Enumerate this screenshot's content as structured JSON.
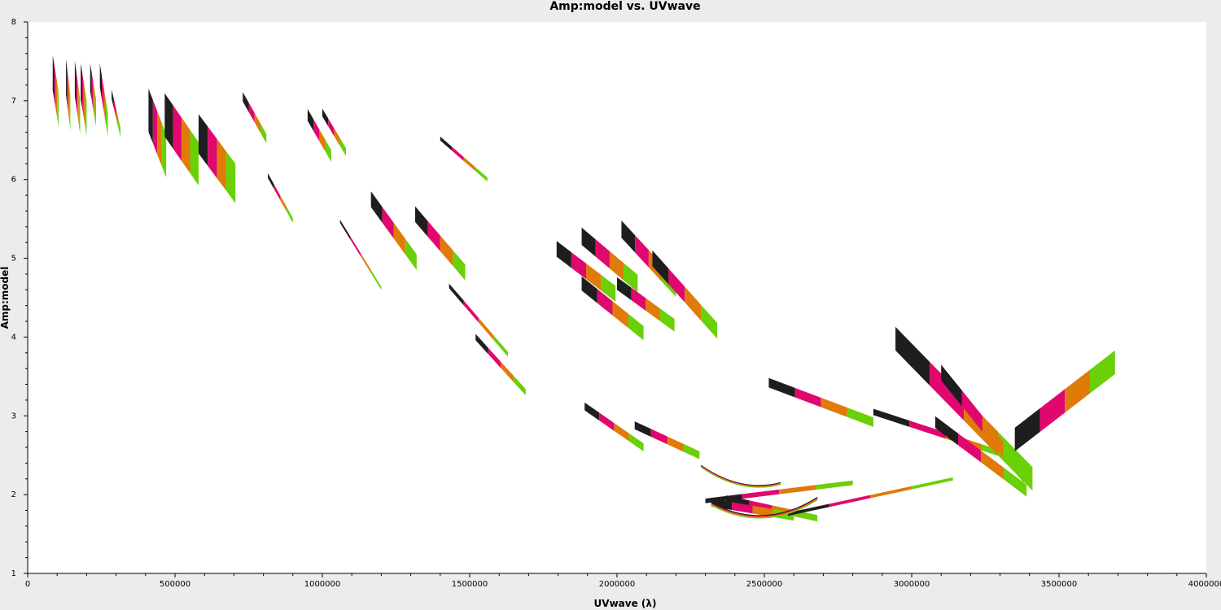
{
  "chart_data": {
    "type": "scatter",
    "title": "Amp:model vs. UVwave",
    "xlabel": "UVwave (λ)",
    "ylabel": "Amp:model",
    "xlim": [
      0,
      4000000
    ],
    "ylim": [
      1,
      8
    ],
    "x_ticks": [
      0,
      500000,
      1000000,
      1500000,
      2000000,
      2500000,
      3000000,
      3500000,
      4000000
    ],
    "y_ticks": [
      1,
      2,
      3,
      4,
      5,
      6,
      7,
      8
    ],
    "grid": false,
    "legend": "none",
    "series_colors": [
      "#1e1e1e",
      "#e0086e",
      "#e07a08",
      "#6ad008"
    ],
    "bands": [
      {
        "x": [
          85000,
          105000
        ],
        "y": [
          7.35,
          6.9
        ],
        "w": 0.45
      },
      {
        "x": [
          130000,
          145000
        ],
        "y": [
          7.3,
          6.85
        ],
        "w": 0.45
      },
      {
        "x": [
          160000,
          178000
        ],
        "y": [
          7.28,
          6.8
        ],
        "w": 0.45
      },
      {
        "x": [
          180000,
          200000
        ],
        "y": [
          7.25,
          6.78
        ],
        "w": 0.45
      },
      {
        "x": [
          212000,
          232000
        ],
        "y": [
          7.3,
          6.85
        ],
        "w": 0.35
      },
      {
        "x": [
          245000,
          272000
        ],
        "y": [
          7.32,
          6.7
        ],
        "w": 0.3
      },
      {
        "x": [
          285000,
          315000
        ],
        "y": [
          7.08,
          6.6
        ],
        "w": 0.12
      },
      {
        "x": [
          410000,
          470000
        ],
        "y": [
          6.88,
          6.3
        ],
        "w": 0.55
      },
      {
        "x": [
          465000,
          580000
        ],
        "y": [
          6.82,
          6.2
        ],
        "w": 0.55
      },
      {
        "x": [
          580000,
          705000
        ],
        "y": [
          6.58,
          5.95
        ],
        "w": 0.5
      },
      {
        "x": [
          730000,
          810000
        ],
        "y": [
          7.05,
          6.52
        ],
        "w": 0.12
      },
      {
        "x": [
          950000,
          1030000
        ],
        "y": [
          6.82,
          6.3
        ],
        "w": 0.15
      },
      {
        "x": [
          1000000,
          1080000
        ],
        "y": [
          6.85,
          6.35
        ],
        "w": 0.1
      },
      {
        "x": [
          815000,
          900000
        ],
        "y": [
          6.05,
          5.48
        ],
        "w": 0.06
      },
      {
        "x": [
          1400000,
          1560000
        ],
        "y": [
          6.52,
          6.0
        ],
        "w": 0.05
      },
      {
        "x": [
          1165000,
          1320000
        ],
        "y": [
          5.75,
          4.95
        ],
        "w": 0.2
      },
      {
        "x": [
          1315000,
          1485000
        ],
        "y": [
          5.56,
          4.82
        ],
        "w": 0.2
      },
      {
        "x": [
          1060000,
          1200000
        ],
        "y": [
          5.47,
          4.62
        ],
        "w": 0.04
      },
      {
        "x": [
          1795000,
          1995000
        ],
        "y": [
          5.12,
          4.55
        ],
        "w": 0.2
      },
      {
        "x": [
          1880000,
          2070000
        ],
        "y": [
          5.28,
          4.68
        ],
        "w": 0.22
      },
      {
        "x": [
          2015000,
          2200000
        ],
        "y": [
          5.37,
          4.62
        ],
        "w": 0.22
      },
      {
        "x": [
          2120000,
          2340000
        ],
        "y": [
          5.0,
          4.08
        ],
        "w": 0.2
      },
      {
        "x": [
          1880000,
          2090000
        ],
        "y": [
          4.68,
          4.05
        ],
        "w": 0.18
      },
      {
        "x": [
          2000000,
          2195000
        ],
        "y": [
          4.68,
          4.15
        ],
        "w": 0.16
      },
      {
        "x": [
          1430000,
          1630000
        ],
        "y": [
          4.65,
          3.78
        ],
        "w": 0.06
      },
      {
        "x": [
          1520000,
          1690000
        ],
        "y": [
          4.0,
          3.3
        ],
        "w": 0.08
      },
      {
        "x": [
          1890000,
          2090000
        ],
        "y": [
          3.12,
          2.6
        ],
        "w": 0.1
      },
      {
        "x": [
          2060000,
          2280000
        ],
        "y": [
          2.88,
          2.5
        ],
        "w": 0.1
      },
      {
        "x": [
          2515000,
          2870000
        ],
        "y": [
          3.42,
          2.92
        ],
        "w": 0.12
      },
      {
        "x": [
          2870000,
          3360000
        ],
        "y": [
          3.05,
          2.45
        ],
        "w": 0.08
      },
      {
        "x": [
          2945000,
          3410000
        ],
        "y": [
          3.98,
          2.2
        ],
        "w": 0.3
      },
      {
        "x": [
          3100000,
          3380000
        ],
        "y": [
          3.55,
          2.25
        ],
        "w": 0.2
      },
      {
        "x": [
          3080000,
          3390000
        ],
        "y": [
          2.92,
          2.05
        ],
        "w": 0.15
      },
      {
        "x": [
          3350000,
          3690000
        ],
        "y": [
          2.7,
          3.68
        ],
        "w": 0.3
      },
      {
        "x": [
          2300000,
          2800000
        ],
        "y": [
          1.92,
          2.15
        ],
        "w": 0.06
      },
      {
        "x": [
          2370000,
          2680000
        ],
        "y": [
          1.95,
          1.7
        ],
        "w": 0.08
      },
      {
        "x": [
          2320000,
          2600000
        ],
        "y": [
          1.9,
          1.72
        ],
        "w": 0.1
      },
      {
        "x": [
          2580000,
          3140000
        ],
        "y": [
          1.75,
          2.2
        ],
        "w": 0.04
      }
    ],
    "arcs": [
      {
        "x": [
          2285000,
          2420000,
          2555000
        ],
        "y": [
          2.36,
          2.13,
          2.14
        ],
        "w": 0.03
      },
      {
        "x": [
          2320000,
          2500000,
          2680000
        ],
        "y": [
          1.88,
          1.72,
          1.95
        ],
        "w": 0.04
      }
    ]
  }
}
